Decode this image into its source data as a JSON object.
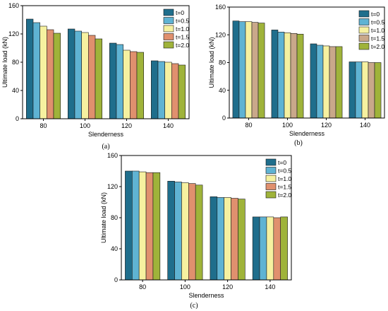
{
  "legend_labels": [
    "t=0",
    "t=0.5",
    "t=1.0",
    "t=1.5",
    "t=2.0"
  ],
  "chart_data": [
    {
      "type": "bar",
      "panel_label": "(a)",
      "categories": [
        "80",
        "100",
        "120",
        "140"
      ],
      "xlabel": "Slenderness",
      "ylabel": "Ultimate load (kN)",
      "ylim": [
        0,
        160
      ],
      "yticks": [
        "0",
        "40",
        "80",
        "120",
        "160"
      ],
      "legend_position": "top-right",
      "colors": [
        "#1f6e8c",
        "#5fb3d3",
        "#f6f1a0",
        "#e0906e",
        "#9fb33a"
      ],
      "series": [
        {
          "name": "t=0",
          "values": [
            141,
            127,
            107,
            82
          ]
        },
        {
          "name": "t=0.5",
          "values": [
            136,
            124,
            105,
            81
          ]
        },
        {
          "name": "t=1.0",
          "values": [
            131,
            122,
            97,
            80
          ]
        },
        {
          "name": "t=1.5",
          "values": [
            126,
            118,
            95,
            78
          ]
        },
        {
          "name": "t=2.0",
          "values": [
            121,
            113,
            94,
            76
          ]
        }
      ]
    },
    {
      "type": "bar",
      "panel_label": "(b)",
      "categories": [
        "80",
        "100",
        "120",
        "140"
      ],
      "xlabel": "Slenderness",
      "ylabel": "Ultimate load (kN)",
      "ylim": [
        0,
        160
      ],
      "yticks": [
        "0",
        "40",
        "80",
        "120",
        "160"
      ],
      "legend_position": "top-right",
      "colors": [
        "#1f6e8c",
        "#5fb3d3",
        "#f6f1a0",
        "#c9a88a",
        "#9fb33a"
      ],
      "series": [
        {
          "name": "t=0",
          "values": [
            140,
            127,
            107,
            81
          ]
        },
        {
          "name": "t=0.5",
          "values": [
            139,
            124,
            105,
            81
          ]
        },
        {
          "name": "t=1.0",
          "values": [
            139,
            123,
            104,
            81
          ]
        },
        {
          "name": "t=1.5",
          "values": [
            138,
            122,
            103,
            80
          ]
        },
        {
          "name": "t=2.0",
          "values": [
            137,
            121,
            103,
            80
          ]
        }
      ]
    },
    {
      "type": "bar",
      "panel_label": "(c)",
      "categories": [
        "80",
        "100",
        "120",
        "140"
      ],
      "xlabel": "Slenderness",
      "ylabel": "Ultimate load (kN)",
      "ylim": [
        0,
        160
      ],
      "yticks": [
        "0",
        "40",
        "80",
        "120",
        "160"
      ],
      "legend_position": "top-right",
      "colors": [
        "#1f6e8c",
        "#5fb3d3",
        "#f6f1a0",
        "#e0906e",
        "#9fb33a"
      ],
      "series": [
        {
          "name": "t=0",
          "values": [
            140,
            127,
            107,
            81
          ]
        },
        {
          "name": "t=0.5",
          "values": [
            140,
            126,
            106,
            81
          ]
        },
        {
          "name": "t=1.0",
          "values": [
            139,
            125,
            106,
            81
          ]
        },
        {
          "name": "t=1.5",
          "values": [
            138,
            124,
            105,
            80
          ]
        },
        {
          "name": "t=2.0",
          "values": [
            138,
            122,
            104,
            81
          ]
        }
      ]
    }
  ]
}
